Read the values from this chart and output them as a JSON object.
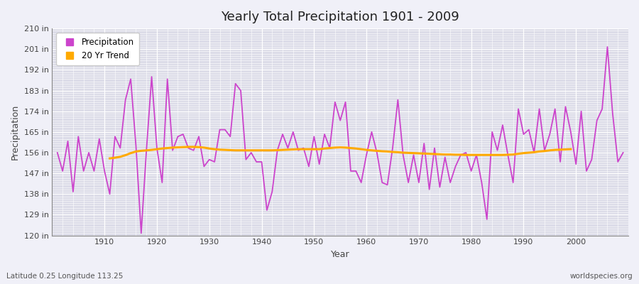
{
  "title": "Yearly Total Precipitation 1901 - 2009",
  "xlabel": "Year",
  "ylabel": "Precipitation",
  "subtitle": "Latitude 0.25 Longitude 113.25",
  "watermark": "worldspecies.org",
  "ylim": [
    120,
    210
  ],
  "yticks": [
    120,
    129,
    138,
    147,
    156,
    165,
    174,
    183,
    192,
    201,
    210
  ],
  "xticks": [
    1910,
    1920,
    1930,
    1940,
    1950,
    1960,
    1970,
    1980,
    1990,
    2000
  ],
  "precipitation_color": "#cc44cc",
  "trend_color": "#ffaa00",
  "fig_bg_color": "#f0f0f8",
  "plot_bg_color": "#dcdce8",
  "years": [
    1901,
    1902,
    1903,
    1904,
    1905,
    1906,
    1907,
    1908,
    1909,
    1910,
    1911,
    1912,
    1913,
    1914,
    1915,
    1916,
    1917,
    1918,
    1919,
    1920,
    1921,
    1922,
    1923,
    1924,
    1925,
    1926,
    1927,
    1928,
    1929,
    1930,
    1931,
    1932,
    1933,
    1934,
    1935,
    1936,
    1937,
    1938,
    1939,
    1940,
    1941,
    1942,
    1943,
    1944,
    1945,
    1946,
    1947,
    1948,
    1949,
    1950,
    1951,
    1952,
    1953,
    1954,
    1955,
    1956,
    1957,
    1958,
    1959,
    1960,
    1961,
    1962,
    1963,
    1964,
    1965,
    1966,
    1967,
    1968,
    1969,
    1970,
    1971,
    1972,
    1973,
    1974,
    1975,
    1976,
    1977,
    1978,
    1979,
    1980,
    1981,
    1982,
    1983,
    1984,
    1985,
    1986,
    1987,
    1988,
    1989,
    1990,
    1991,
    1992,
    1993,
    1994,
    1995,
    1996,
    1997,
    1998,
    1999,
    2000,
    2001,
    2002,
    2003,
    2004,
    2005,
    2006,
    2007,
    2008,
    2009
  ],
  "precipitation": [
    156,
    148,
    161,
    139,
    163,
    148,
    156,
    148,
    162,
    148,
    138,
    163,
    158,
    179,
    188,
    159,
    121,
    157,
    189,
    158,
    143,
    188,
    157,
    163,
    164,
    158,
    157,
    163,
    150,
    153,
    152,
    166,
    166,
    163,
    186,
    183,
    153,
    156,
    152,
    152,
    131,
    139,
    157,
    164,
    158,
    165,
    157,
    158,
    150,
    163,
    151,
    164,
    158,
    178,
    170,
    178,
    148,
    148,
    143,
    155,
    165,
    156,
    143,
    142,
    158,
    179,
    155,
    143,
    155,
    143,
    160,
    140,
    158,
    141,
    154,
    143,
    150,
    155,
    156,
    148,
    155,
    143,
    127,
    165,
    157,
    168,
    155,
    143,
    175,
    164,
    166,
    156,
    175,
    157,
    164,
    175,
    152,
    176,
    165,
    151,
    174,
    148,
    153,
    170,
    175,
    202,
    173,
    152,
    156
  ],
  "trend_years": [
    1911,
    1912,
    1913,
    1914,
    1915,
    1916,
    1917,
    1918,
    1919,
    1920,
    1921,
    1922,
    1923,
    1924,
    1925,
    1926,
    1927,
    1928,
    1929,
    1930,
    1931,
    1932,
    1933,
    1934,
    1935,
    1936,
    1937,
    1938,
    1939,
    1940,
    1941,
    1942,
    1943,
    1944,
    1945,
    1946,
    1947,
    1948,
    1949,
    1950,
    1951,
    1952,
    1953,
    1954,
    1955,
    1956,
    1957,
    1958,
    1959,
    1960,
    1961,
    1962,
    1963,
    1964,
    1965,
    1966,
    1967,
    1968,
    1969,
    1970,
    1971,
    1972,
    1973,
    1974,
    1975,
    1976,
    1977,
    1978,
    1979,
    1980,
    1981,
    1982,
    1983,
    1984,
    1985,
    1986,
    1987,
    1988,
    1989,
    1990,
    1991,
    1992,
    1993,
    1994,
    1995,
    1996,
    1997,
    1998,
    1999
  ],
  "trend": [
    153.5,
    153.8,
    154.2,
    154.9,
    155.8,
    156.5,
    156.8,
    157.0,
    157.2,
    157.5,
    157.8,
    158.0,
    158.2,
    158.3,
    158.4,
    158.5,
    158.5,
    158.4,
    158.2,
    157.8,
    157.5,
    157.3,
    157.2,
    157.1,
    157.0,
    157.0,
    157.0,
    157.0,
    157.0,
    157.0,
    157.0,
    157.0,
    157.1,
    157.2,
    157.3,
    157.4,
    157.5,
    157.5,
    157.5,
    157.5,
    157.5,
    157.8,
    158.0,
    158.2,
    158.3,
    158.2,
    158.0,
    157.8,
    157.5,
    157.2,
    157.0,
    156.8,
    156.6,
    156.5,
    156.3,
    156.2,
    156.0,
    155.9,
    155.8,
    155.7,
    155.6,
    155.5,
    155.4,
    155.3,
    155.2,
    155.2,
    155.1,
    155.1,
    155.0,
    155.0,
    155.0,
    155.0,
    155.0,
    155.0,
    155.0,
    155.0,
    155.1,
    155.2,
    155.5,
    155.8,
    156.0,
    156.2,
    156.5,
    156.7,
    157.0,
    157.2,
    157.3,
    157.4,
    157.5
  ]
}
